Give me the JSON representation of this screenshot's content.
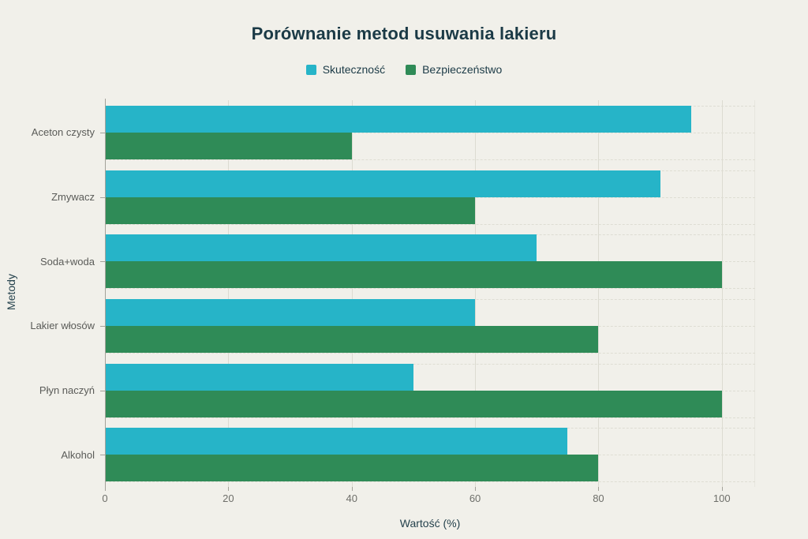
{
  "title": "Porównanie metod usuwania lakieru",
  "colors": {
    "background": "#f1f0ea",
    "title_text": "#1b3a46",
    "axis_title_text": "#24414c",
    "category_label_text": "#5a5b58",
    "tick_label_text": "#6e6f6a",
    "gridline": "#dcdbd1",
    "axis_line": "#a3a29a",
    "series_skutecznosc": "#26b4c8",
    "series_bezpieczenstwo": "#2f8b57"
  },
  "chart_data": {
    "type": "bar",
    "orientation": "horizontal",
    "title": "Porównanie metod usuwania lakieru",
    "categories": [
      "Aceton czysty",
      "Zmywacz",
      "Soda+woda",
      "Lakier włosów",
      "Płyn naczyń",
      "Alkohol"
    ],
    "series": [
      {
        "name": "Skuteczność",
        "color": "#26b4c8",
        "values": [
          95,
          90,
          70,
          60,
          50,
          75
        ]
      },
      {
        "name": "Bezpieczeństwo",
        "color": "#2f8b57",
        "values": [
          40,
          60,
          100,
          80,
          100,
          80
        ]
      }
    ],
    "xlabel": "Wartość (%)",
    "ylabel": "Metody",
    "xticks": [
      0,
      20,
      40,
      60,
      80,
      100
    ],
    "xlim": [
      0,
      105.4
    ],
    "grid": true,
    "legend_position": "top"
  }
}
